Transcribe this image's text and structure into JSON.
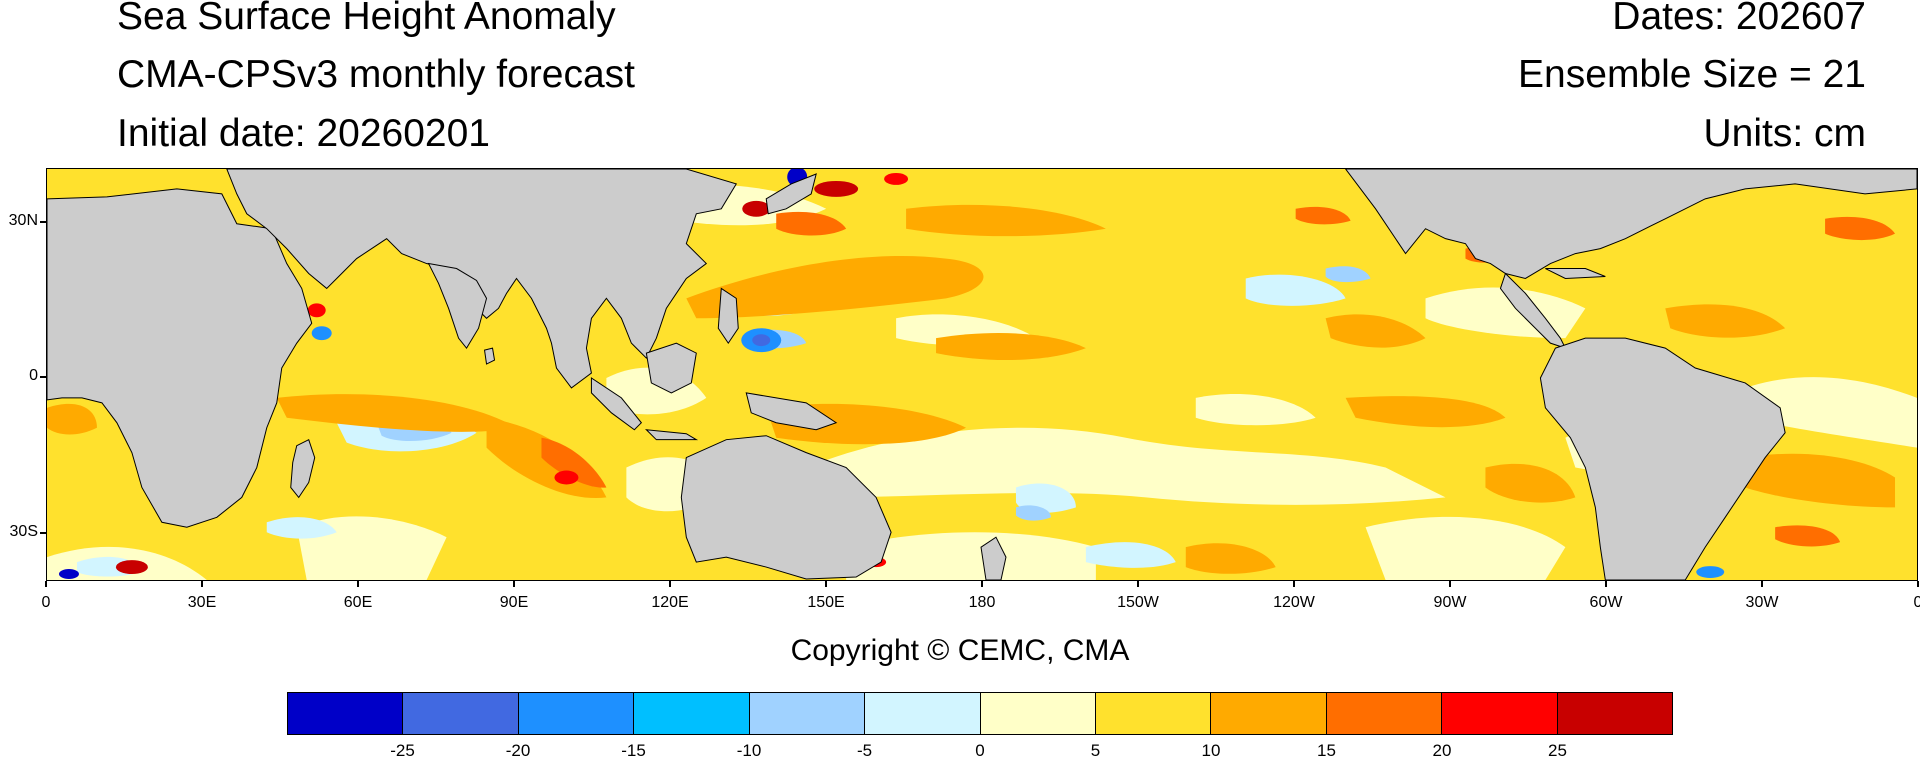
{
  "header": {
    "title": "Sea Surface Height Anomaly",
    "subtitle": "CMA-CPSv3 monthly forecast",
    "initial_date": "Initial date: 20260201",
    "dates": "Dates: 202607",
    "ensemble": "Ensemble Size = 21",
    "units": "Units: cm"
  },
  "map": {
    "projection": "cylindrical-equidistant",
    "land_color": "#cccccc",
    "lat_labels": [
      "30N",
      "0",
      "30S"
    ],
    "lon_labels": [
      "0",
      "30E",
      "60E",
      "90E",
      "120E",
      "150E",
      "180",
      "150W",
      "120W",
      "90W",
      "60W",
      "30W",
      "0"
    ]
  },
  "colorbar": {
    "colors": [
      "#0000c8",
      "#4169e1",
      "#1e90ff",
      "#00bfff",
      "#a0d2ff",
      "#d2f5ff",
      "#ffffc8",
      "#ffe12d",
      "#ffaa00",
      "#ff6e00",
      "#ff0000",
      "#c80000"
    ],
    "labels": [
      "-25",
      "-20",
      "-15",
      "-10",
      "-5",
      "0",
      "5",
      "10",
      "15",
      "20",
      "25"
    ]
  },
  "copyright": "Copyright © CEMC, CMA"
}
